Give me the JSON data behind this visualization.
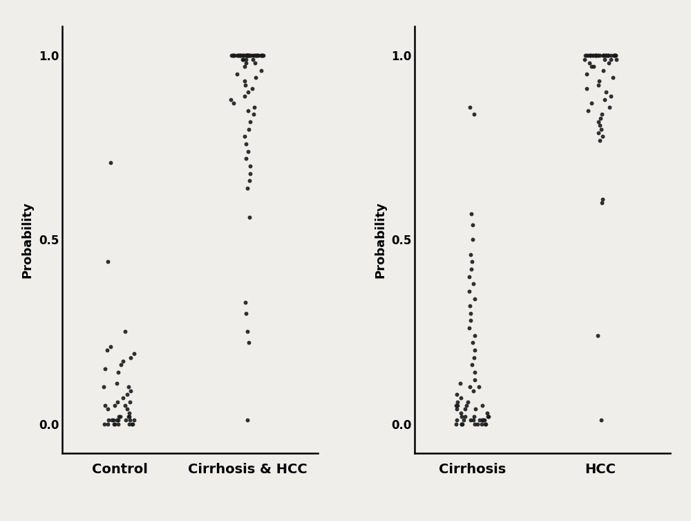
{
  "plot1": {
    "xlabel_left": "Control",
    "xlabel_right": "Cirrhosis & HCC",
    "ylabel": "Probability",
    "control_points": [
      0.0,
      0.0,
      0.0,
      0.01,
      0.01,
      0.01,
      0.01,
      0.02,
      0.02,
      0.02,
      0.0,
      0.0,
      0.0,
      0.01,
      0.01,
      0.01,
      0.0,
      0.0,
      0.01,
      0.02,
      0.03,
      0.04,
      0.04,
      0.05,
      0.05,
      0.05,
      0.06,
      0.06,
      0.07,
      0.08,
      0.09,
      0.1,
      0.1,
      0.11,
      0.14,
      0.15,
      0.16,
      0.17,
      0.18,
      0.19,
      0.2,
      0.21,
      0.25,
      0.44,
      0.71
    ],
    "hcc_points_top": [
      1.0,
      1.0,
      1.0,
      1.0,
      1.0,
      1.0,
      1.0,
      1.0,
      1.0,
      1.0,
      1.0,
      1.0,
      1.0,
      1.0,
      1.0,
      1.0,
      1.0,
      1.0,
      1.0,
      1.0,
      1.0,
      1.0,
      1.0,
      1.0,
      1.0,
      1.0,
      1.0,
      1.0,
      1.0,
      1.0,
      1.0,
      1.0,
      1.0,
      1.0,
      1.0,
      1.0,
      1.0,
      1.0,
      1.0,
      1.0,
      0.99,
      0.99,
      0.99,
      0.99,
      0.98,
      0.98,
      0.97,
      0.96,
      0.95,
      0.94,
      0.93,
      0.92,
      0.91,
      0.9,
      0.89,
      0.88,
      0.87,
      0.86,
      0.85,
      0.84
    ],
    "hcc_points_col": [
      0.82,
      0.8,
      0.78,
      0.76,
      0.74,
      0.72,
      0.7,
      0.68,
      0.66,
      0.64,
      0.56,
      0.33,
      0.3,
      0.25,
      0.22,
      0.01
    ]
  },
  "plot2": {
    "xlabel_left": "Cirrhosis",
    "xlabel_right": "HCC",
    "ylabel": "Probability",
    "cirrhosis_points_low": [
      0.0,
      0.0,
      0.0,
      0.01,
      0.01,
      0.01,
      0.01,
      0.02,
      0.02,
      0.02,
      0.0,
      0.0,
      0.0,
      0.01,
      0.01,
      0.01,
      0.0,
      0.0,
      0.01,
      0.02,
      0.03,
      0.04,
      0.04,
      0.05,
      0.05,
      0.05,
      0.06,
      0.06,
      0.07,
      0.08,
      0.09,
      0.1,
      0.1,
      0.11,
      0.05,
      0.04,
      0.03,
      0.02,
      0.01,
      0.0
    ],
    "cirrhosis_points_col": [
      0.12,
      0.14,
      0.16,
      0.18,
      0.2,
      0.22,
      0.24,
      0.26,
      0.28,
      0.3,
      0.32,
      0.34,
      0.36,
      0.38,
      0.4,
      0.42,
      0.44,
      0.46,
      0.5,
      0.54,
      0.57,
      0.84,
      0.86
    ],
    "hcc_points_top": [
      1.0,
      1.0,
      1.0,
      1.0,
      1.0,
      1.0,
      1.0,
      1.0,
      1.0,
      1.0,
      1.0,
      1.0,
      1.0,
      1.0,
      1.0,
      1.0,
      1.0,
      1.0,
      1.0,
      1.0,
      1.0,
      1.0,
      1.0,
      1.0,
      1.0,
      1.0,
      1.0,
      1.0,
      1.0,
      1.0,
      0.99,
      0.99,
      0.99,
      0.99,
      0.98,
      0.98,
      0.97,
      0.97,
      0.96,
      0.95,
      0.94,
      0.93,
      0.92,
      0.91,
      0.9,
      0.89,
      0.88,
      0.87,
      0.86,
      0.85
    ],
    "hcc_points_col": [
      0.84,
      0.83,
      0.82,
      0.81,
      0.8,
      0.79,
      0.78,
      0.77,
      0.61,
      0.6,
      0.24,
      0.01
    ]
  },
  "dot_color": "#1a1a1a",
  "dot_size": 18,
  "dot_alpha": 0.9,
  "background_color": "#f0eeea",
  "ylim": [
    -0.08,
    1.08
  ],
  "yticks": [
    0.0,
    0.5,
    1.0
  ],
  "ylabel_fontsize": 13,
  "xlabel_fontsize": 14,
  "tick_fontsize": 12
}
